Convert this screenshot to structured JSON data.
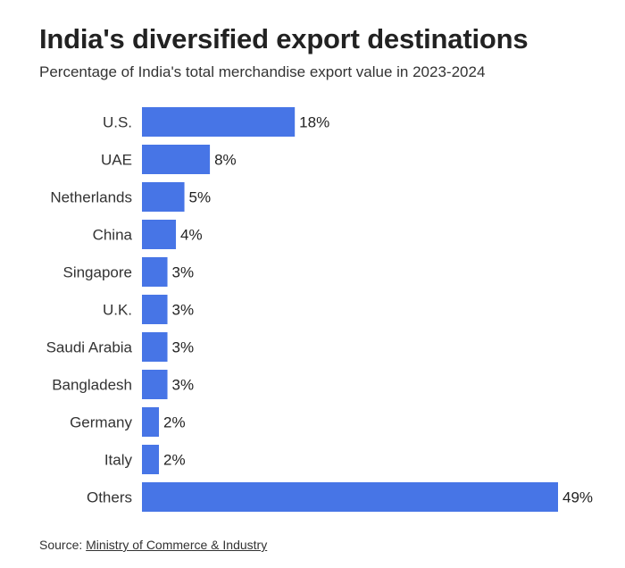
{
  "title": "India's diversified export destinations",
  "subtitle": "Percentage of India's total merchandise export value in 2023-2024",
  "source": {
    "label": "Source:",
    "link_text": "Ministry of Commerce & Industry"
  },
  "colors": {
    "bar": "#4775e6"
  },
  "chart_data": {
    "type": "bar",
    "orientation": "horizontal",
    "categories": [
      "U.S.",
      "UAE",
      "Netherlands",
      "China",
      "Singapore",
      "U.K.",
      "Saudi Arabia",
      "Bangladesh",
      "Germany",
      "Italy",
      "Others"
    ],
    "values": [
      18,
      8,
      5,
      4,
      3,
      3,
      3,
      3,
      2,
      2,
      49
    ],
    "data_labels": [
      "18%",
      "8%",
      "5%",
      "4%",
      "3%",
      "3%",
      "3%",
      "3%",
      "2%",
      "2%",
      "49%"
    ],
    "unit": "%",
    "grid": false,
    "legend": "none"
  }
}
